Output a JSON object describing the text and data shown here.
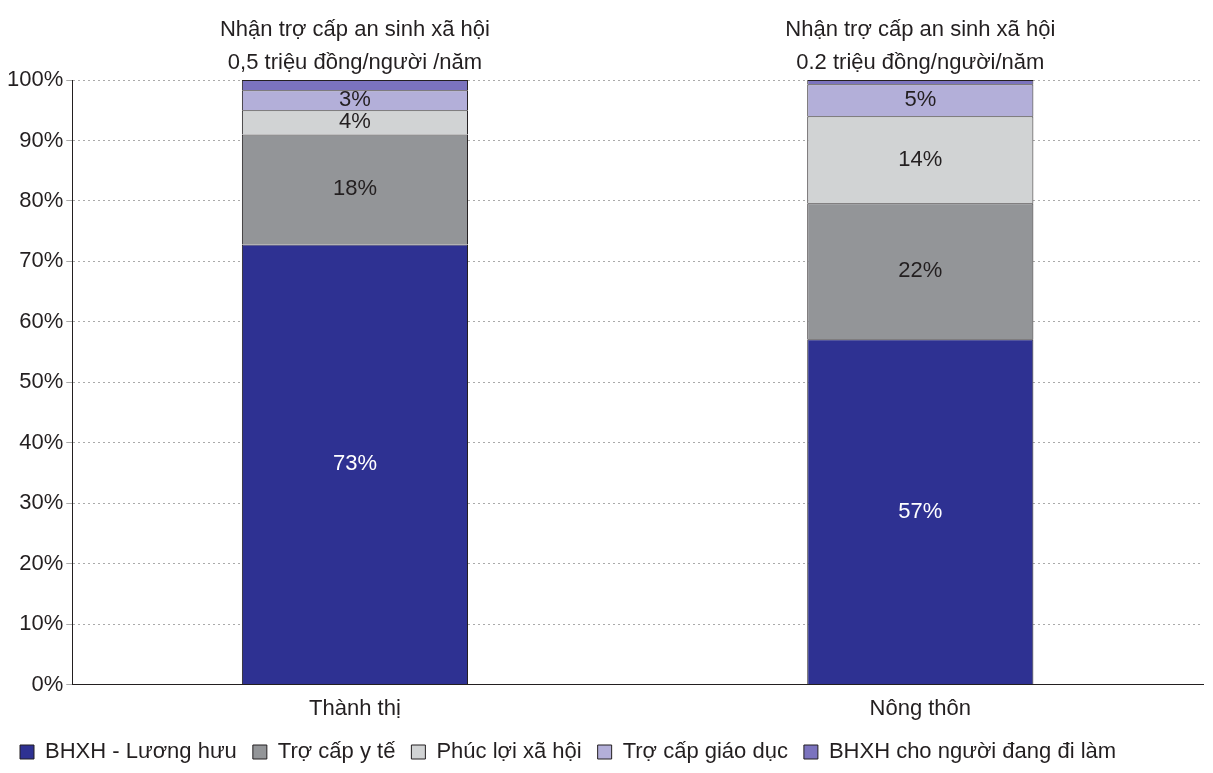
{
  "chart_data": {
    "type": "bar",
    "stacked": true,
    "categories": [
      "Thành thị",
      "Nông thôn"
    ],
    "series": [
      {
        "name": "BHXH - Lương hưu",
        "color": "#2e3192",
        "values": [
          72.8,
          57.1
        ],
        "value_labels": [
          "73%",
          "57%"
        ]
      },
      {
        "name": "Trợ cấp y tế",
        "color": "#939598",
        "values": [
          18.2,
          22.5
        ],
        "value_labels": [
          "18%",
          "22%"
        ]
      },
      {
        "name": "Phúc lợi xã hội",
        "color": "#d1d3d4",
        "values": [
          4,
          14.4
        ],
        "value_labels": [
          "4%",
          "14%"
        ]
      },
      {
        "name": "Trợ cấp giáo dục",
        "color": "#b3afd9",
        "values": [
          3.3,
          5.3
        ],
        "value_labels": [
          "3%",
          "5%"
        ]
      },
      {
        "name": "BHXH cho người đang đi làm",
        "color": "#7b73be",
        "values": [
          1.7,
          0.7
        ],
        "value_labels": [
          null,
          null
        ]
      }
    ],
    "ylim": [
      0,
      100
    ],
    "yticks": [
      {
        "value": 0,
        "label": "0%"
      },
      {
        "value": 10,
        "label": "10%"
      },
      {
        "value": 20,
        "label": "20%"
      },
      {
        "value": 30,
        "label": "30%"
      },
      {
        "value": 40,
        "label": "40%"
      },
      {
        "value": 50,
        "label": "50%"
      },
      {
        "value": 60,
        "label": "60%"
      },
      {
        "value": 70,
        "label": "70%"
      },
      {
        "value": 80,
        "label": "80%"
      },
      {
        "value": 90,
        "label": "90%"
      },
      {
        "value": 100,
        "label": "100%"
      }
    ],
    "grid": "y",
    "legend": "bottom",
    "annotations": [
      "Nhận trợ cấp an sinh xã hội\n0,5 triệu đồng/người /năm",
      "Nhận trợ cấp an sinh xã hội\n0.2 triệu đồng/người/năm"
    ]
  }
}
